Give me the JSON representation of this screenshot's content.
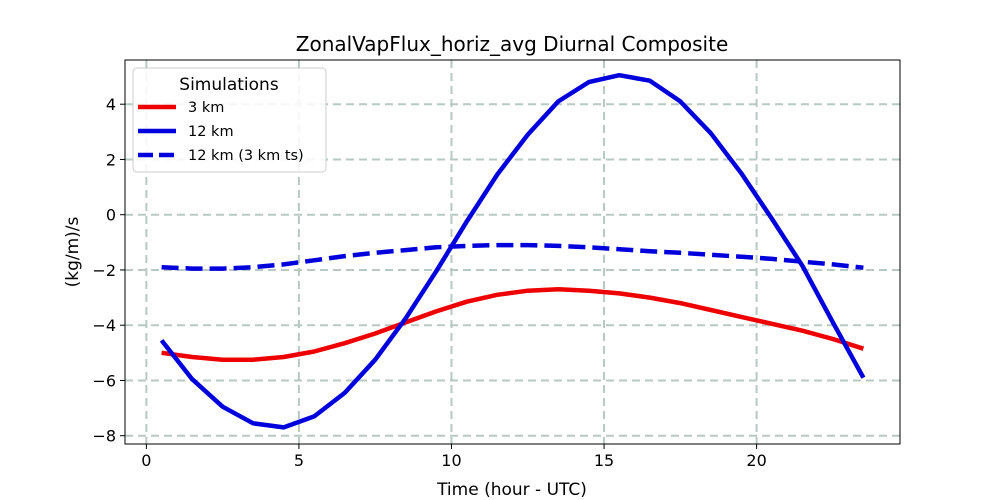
{
  "chart_data": {
    "type": "line",
    "title": "ZonalVapFlux_horiz_avg Diurnal Composite",
    "xlabel": "Time (hour - UTC)",
    "ylabel": "(kg/m)/s",
    "xlim": [
      -0.7,
      24.7
    ],
    "ylim": [
      -8.3,
      5.6
    ],
    "xticks": [
      0,
      5,
      10,
      15,
      20
    ],
    "yticks": [
      -8,
      -6,
      -4,
      -2,
      0,
      2,
      4
    ],
    "grid": true,
    "legend": {
      "title": "Simulations",
      "placement": "top-left"
    },
    "x": [
      0.5,
      1.5,
      2.5,
      3.5,
      4.5,
      5.5,
      6.5,
      7.5,
      8.5,
      9.5,
      10.5,
      11.5,
      12.5,
      13.5,
      14.5,
      15.5,
      16.5,
      17.5,
      18.5,
      19.5,
      20.5,
      21.5,
      22.5,
      23.5
    ],
    "series": [
      {
        "name": "3 km",
        "color": "#ee0000",
        "style": "solid",
        "values": [
          -5.0,
          -5.15,
          -5.25,
          -5.25,
          -5.15,
          -4.95,
          -4.65,
          -4.3,
          -3.9,
          -3.5,
          -3.15,
          -2.9,
          -2.75,
          -2.7,
          -2.75,
          -2.85,
          -3.0,
          -3.2,
          -3.45,
          -3.7,
          -3.95,
          -4.2,
          -4.5,
          -4.85
        ]
      },
      {
        "name": "12 km",
        "color": "#0000dd",
        "style": "solid",
        "values": [
          -4.55,
          -5.95,
          -6.95,
          -7.55,
          -7.7,
          -7.3,
          -6.45,
          -5.25,
          -3.75,
          -2.05,
          -0.25,
          1.45,
          2.9,
          4.1,
          4.8,
          5.05,
          4.85,
          4.1,
          2.95,
          1.5,
          -0.15,
          -1.85,
          -3.9,
          -5.9
        ]
      },
      {
        "name": "12 km (3 km ts)",
        "color": "#0000dd",
        "style": "dashed",
        "values": [
          -1.9,
          -1.95,
          -1.95,
          -1.9,
          -1.8,
          -1.65,
          -1.5,
          -1.38,
          -1.28,
          -1.18,
          -1.13,
          -1.1,
          -1.1,
          -1.13,
          -1.18,
          -1.25,
          -1.32,
          -1.38,
          -1.45,
          -1.52,
          -1.6,
          -1.7,
          -1.8,
          -1.92
        ]
      }
    ]
  }
}
